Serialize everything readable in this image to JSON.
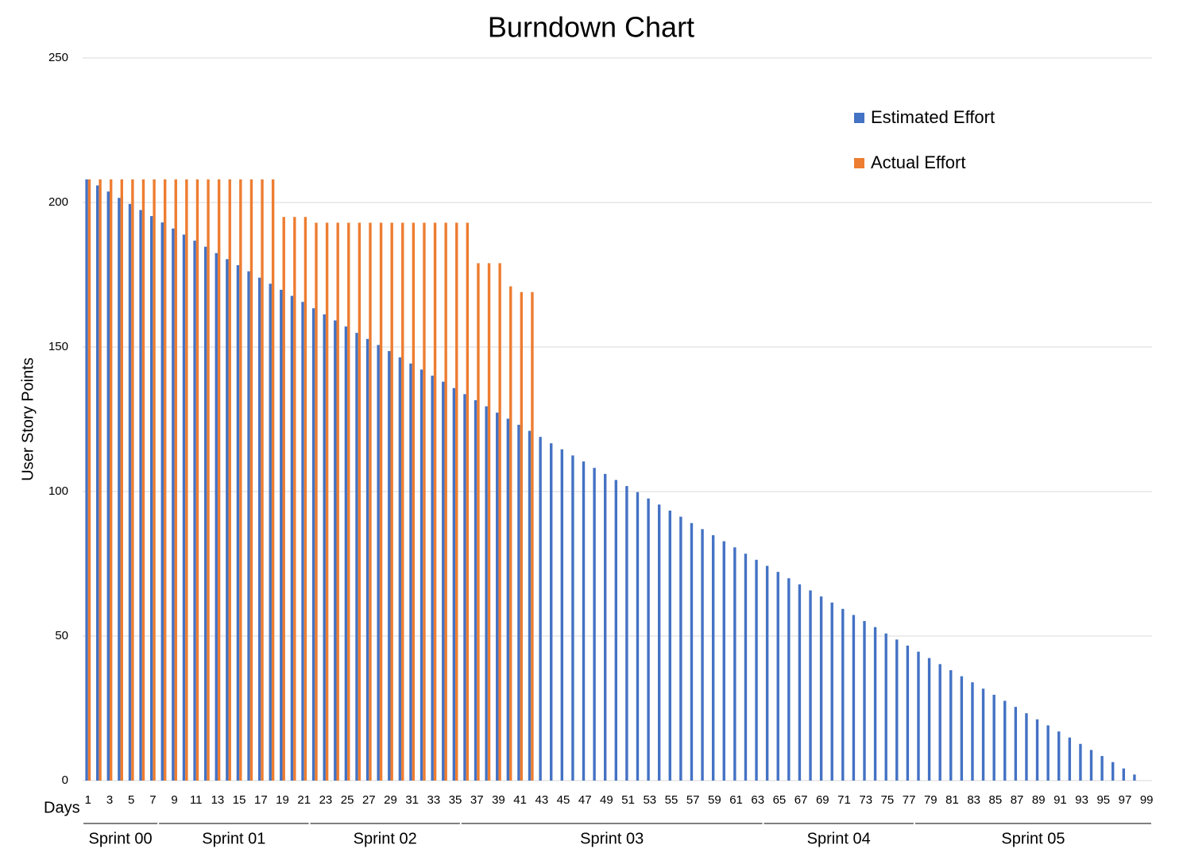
{
  "chart_data": {
    "type": "bar",
    "title": "Burndown Chart",
    "ylabel": "User Story Points",
    "xlabel": "Days",
    "categories": [
      1,
      null,
      3,
      null,
      5,
      null,
      7,
      null,
      9,
      null,
      11,
      null,
      13,
      null,
      15,
      null,
      17,
      null,
      19,
      null,
      21,
      null,
      23,
      null,
      25,
      null,
      27,
      null,
      29,
      null,
      31,
      null,
      33,
      null,
      35,
      null,
      37,
      null,
      39,
      null,
      41,
      null,
      43,
      null,
      45,
      null,
      47,
      null,
      49,
      null,
      51,
      null,
      53,
      null,
      55,
      null,
      57,
      null,
      59,
      null,
      61,
      null,
      63,
      null,
      65,
      null,
      67,
      null,
      69,
      null,
      71,
      null,
      73,
      null,
      75,
      null,
      77,
      null,
      79,
      null,
      81,
      null,
      83,
      null,
      85,
      null,
      87,
      null,
      89,
      null,
      91,
      null,
      93,
      null,
      95,
      null,
      97,
      null,
      99
    ],
    "series": [
      {
        "name": "Estimated Effort",
        "color": "#4472c4",
        "values": [
          208,
          205.9,
          203.8,
          201.6,
          199.5,
          197.4,
          195.3,
          193.1,
          191.0,
          188.9,
          186.8,
          184.7,
          182.5,
          180.4,
          178.3,
          176.2,
          174.0,
          171.9,
          169.8,
          167.7,
          165.6,
          163.4,
          161.3,
          159.2,
          157.1,
          154.9,
          152.8,
          150.7,
          148.6,
          146.4,
          144.3,
          142.2,
          140.1,
          138.0,
          135.8,
          133.7,
          131.6,
          129.5,
          127.3,
          125.2,
          123.1,
          121.0,
          118.9,
          116.7,
          114.6,
          112.5,
          110.4,
          108.2,
          106.1,
          104.0,
          101.9,
          99.8,
          97.6,
          95.5,
          93.4,
          91.3,
          89.1,
          87.0,
          84.9,
          82.8,
          80.7,
          78.5,
          76.4,
          74.3,
          72.2,
          70.0,
          67.9,
          65.8,
          63.7,
          61.6,
          59.4,
          57.3,
          55.2,
          53.1,
          50.9,
          48.8,
          46.7,
          44.6,
          42.4,
          40.3,
          38.2,
          36.1,
          34.0,
          31.8,
          29.7,
          27.6,
          25.5,
          23.3,
          21.2,
          19.1,
          17.0,
          14.9,
          12.7,
          10.6,
          8.5,
          6.4,
          4.2,
          2.1,
          0
        ]
      },
      {
        "name": "Actual Effort",
        "color": "#ed7d31",
        "values": [
          208,
          208,
          208,
          208,
          208,
          208,
          208,
          208,
          208,
          208,
          208,
          208,
          208,
          208,
          208,
          208,
          208,
          208,
          195,
          195,
          195,
          193,
          193,
          193,
          193,
          193,
          193,
          193,
          193,
          193,
          193,
          193,
          193,
          193,
          193,
          193,
          179,
          179,
          179,
          171,
          169,
          169,
          null,
          null,
          null,
          null,
          null,
          null,
          null,
          null,
          null,
          null,
          null,
          null,
          null,
          null,
          null,
          null,
          null,
          null,
          null,
          null,
          null,
          null,
          null,
          null,
          null,
          null,
          null,
          null,
          null,
          null,
          null,
          null,
          null,
          null,
          null,
          null,
          null,
          null,
          null,
          null,
          null,
          null,
          null,
          null,
          null,
          null,
          null,
          null,
          null,
          null,
          null,
          null,
          null,
          null,
          null,
          null,
          null
        ]
      }
    ],
    "groups": [
      {
        "label": "Sprint 00",
        "span": [
          1,
          7
        ]
      },
      {
        "label": "Sprint 01",
        "span": [
          8,
          21
        ]
      },
      {
        "label": "Sprint 02",
        "span": [
          22,
          35
        ]
      },
      {
        "label": "Sprint 03",
        "span": [
          36,
          63
        ]
      },
      {
        "label": "Sprint 04",
        "span": [
          64,
          77
        ]
      },
      {
        "label": "Sprint 05",
        "span": [
          78,
          99
        ]
      }
    ],
    "ylim": [
      0,
      250
    ],
    "yticks": [
      0,
      50,
      100,
      150,
      200,
      250
    ],
    "grid": true,
    "legend": "top-right"
  }
}
